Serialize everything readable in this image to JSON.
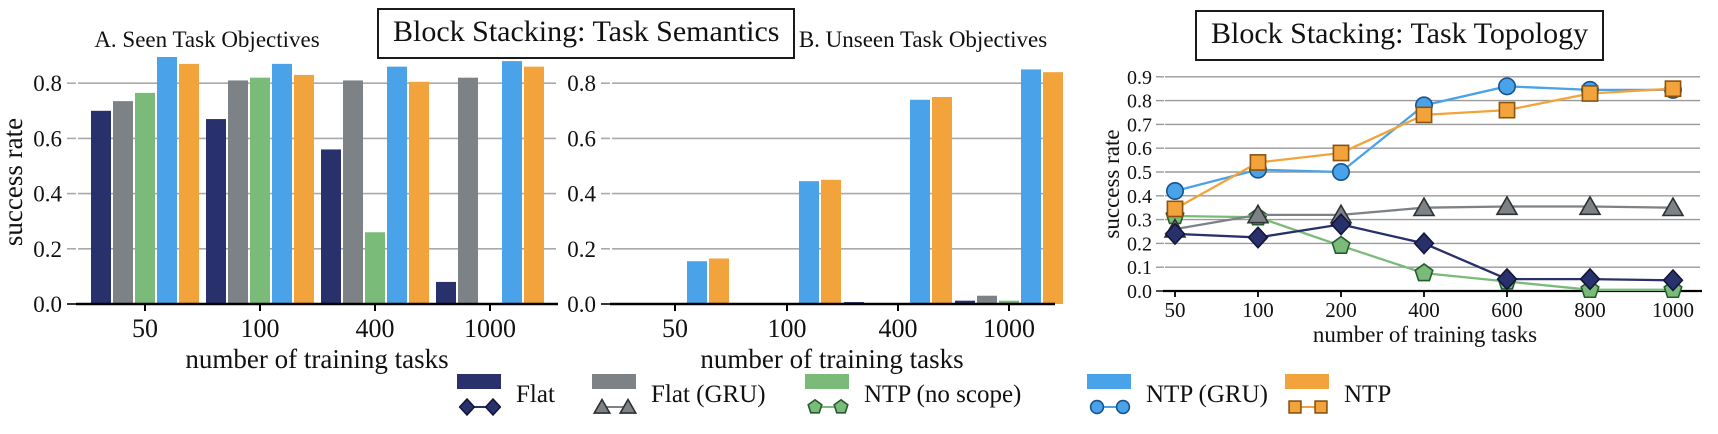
{
  "titles": {
    "semantics": "Block Stacking: Task Semantics",
    "topology": "Block Stacking: Task Topology"
  },
  "palette": {
    "navy": {
      "fill": "#28316b",
      "edge": "#13163a"
    },
    "gray": {
      "fill": "#7d8287",
      "edge": "#2f3133"
    },
    "green": {
      "fill": "#7bbb7a",
      "edge": "#245c2d"
    },
    "blue": {
      "fill": "#4aa2e8",
      "edge": "#17538f"
    },
    "orange": {
      "fill": "#f2a33c",
      "edge": "#8a5410"
    }
  },
  "grid_color": "#aaaaaa",
  "axis_color": "#000000",
  "chart_data": [
    {
      "id": "seen",
      "type": "bar",
      "subtitle": "A. Seen Task Objectives",
      "xlabel": "number of training tasks",
      "ylabel": "success rate",
      "categories": [
        "50",
        "100",
        "400",
        "1000"
      ],
      "yticks": [
        0.0,
        0.2,
        0.4,
        0.6,
        0.8
      ],
      "ylim": [
        0,
        0.93
      ],
      "grid": true,
      "series": [
        {
          "name": "Flat",
          "color": "navy",
          "values": [
            0.7,
            0.67,
            0.56,
            0.08
          ]
        },
        {
          "name": "Flat (GRU)",
          "color": "gray",
          "values": [
            0.735,
            0.81,
            0.81,
            0.82
          ]
        },
        {
          "name": "NTP (no scope)",
          "color": "green",
          "values": [
            0.765,
            0.82,
            0.26,
            0.0
          ]
        },
        {
          "name": "NTP (GRU)",
          "color": "blue",
          "values": [
            0.895,
            0.87,
            0.86,
            0.88
          ]
        },
        {
          "name": "NTP",
          "color": "orange",
          "values": [
            0.87,
            0.83,
            0.805,
            0.86
          ]
        }
      ]
    },
    {
      "id": "unseen",
      "type": "bar",
      "subtitle": "B. Unseen Task Objectives",
      "xlabel": "number of training tasks",
      "ylabel": "",
      "categories": [
        "50",
        "100",
        "400",
        "1000"
      ],
      "yticks": [
        0.0,
        0.2,
        0.4,
        0.6,
        0.8
      ],
      "ylim": [
        0,
        0.93
      ],
      "grid": true,
      "series": [
        {
          "name": "Flat",
          "color": "navy",
          "values": [
            0.0,
            0.0,
            0.007,
            0.012
          ]
        },
        {
          "name": "Flat (GRU)",
          "color": "gray",
          "values": [
            0.0,
            0.0,
            0.0,
            0.03
          ]
        },
        {
          "name": "NTP (no scope)",
          "color": "green",
          "values": [
            0.0,
            0.0,
            0.0,
            0.012
          ]
        },
        {
          "name": "NTP (GRU)",
          "color": "blue",
          "values": [
            0.155,
            0.445,
            0.74,
            0.85
          ]
        },
        {
          "name": "NTP",
          "color": "orange",
          "values": [
            0.165,
            0.45,
            0.75,
            0.84
          ]
        }
      ]
    },
    {
      "id": "topology",
      "type": "line",
      "xlabel": "number of training tasks",
      "ylabel": "success rate",
      "categories": [
        "50",
        "100",
        "200",
        "400",
        "600",
        "800",
        "1000"
      ],
      "yticks": [
        0.0,
        0.1,
        0.2,
        0.3,
        0.4,
        0.5,
        0.6,
        0.7,
        0.8,
        0.9
      ],
      "ylim": [
        0,
        0.93
      ],
      "grid": true,
      "series": [
        {
          "name": "NTP (no scope)",
          "color": "green",
          "marker": "pentagon",
          "values": [
            0.315,
            0.31,
            0.19,
            0.075,
            0.04,
            0.005,
            0.005
          ]
        },
        {
          "name": "Flat (GRU)",
          "color": "gray",
          "marker": "triangle",
          "values": [
            0.26,
            0.32,
            0.32,
            0.35,
            0.355,
            0.355,
            0.35
          ]
        },
        {
          "name": "Flat",
          "color": "navy",
          "marker": "diamond",
          "values": [
            0.24,
            0.225,
            0.28,
            0.2,
            0.05,
            0.05,
            0.045
          ]
        },
        {
          "name": "NTP (GRU)",
          "color": "blue",
          "marker": "circle",
          "values": [
            0.42,
            0.51,
            0.5,
            0.78,
            0.86,
            0.845,
            0.845
          ]
        },
        {
          "name": "NTP",
          "color": "orange",
          "marker": "square",
          "values": [
            0.345,
            0.54,
            0.58,
            0.74,
            0.76,
            0.83,
            0.85
          ]
        }
      ]
    }
  ],
  "legend": {
    "items": [
      {
        "label": "Flat",
        "color": "navy",
        "marker": "diamond"
      },
      {
        "label": "Flat (GRU)",
        "color": "gray",
        "marker": "triangle"
      },
      {
        "label": "NTP (no scope)",
        "color": "green",
        "marker": "pentagon"
      },
      {
        "label": "NTP (GRU)",
        "color": "blue",
        "marker": "circle"
      },
      {
        "label": "NTP",
        "color": "orange",
        "marker": "square"
      }
    ]
  }
}
